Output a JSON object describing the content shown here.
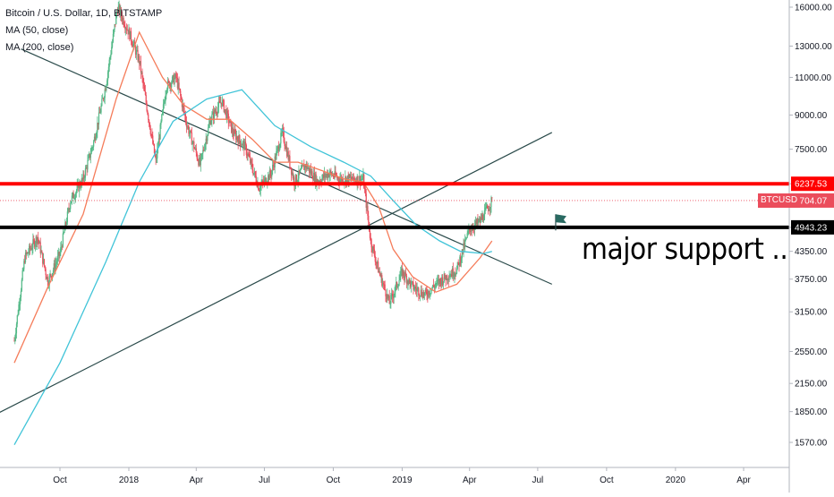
{
  "chart": {
    "title": "Bitcoin / U.S. Dollar, 1D, BITSTAMP",
    "indicators": [
      "MA (50, close)",
      "MA (200, close)"
    ],
    "annotation": "major support ..",
    "symbol_tag": "BTCUSD",
    "colors": {
      "candle_up": "#53b987",
      "candle_down": "#eb4d5c",
      "ma50": "#f57c5a",
      "ma200": "#40c4d8",
      "resistance": "#ff0000",
      "support": "#000000",
      "trendline": "#2a4a4a",
      "price_line": "#eb4d5c"
    }
  },
  "chart_data": {
    "type": "line",
    "xaxis_ticks": [
      "Oct",
      "2018",
      "Apr",
      "Jul",
      "Oct",
      "2019",
      "Apr",
      "Jul",
      "Oct",
      "2020",
      "Apr"
    ],
    "yaxis_ticks": [
      16000.0,
      13000.0,
      11000.0,
      9000.0,
      7500.0,
      6237.53,
      5704.07,
      4943.23,
      4350.0,
      3750.0,
      3150.0,
      2550.0,
      2150.0,
      1850.0,
      1570.0
    ],
    "ylim": [
      1400,
      16800
    ],
    "yscale": "log",
    "horizontal_levels": [
      {
        "price": 6237.53,
        "label": "6237.53",
        "style": "resistance"
      },
      {
        "price": 4943.23,
        "label": "4943.23",
        "style": "support"
      }
    ],
    "last_price": {
      "price": 5704.07,
      "label": "5704.07"
    },
    "series": [
      {
        "name": "BTCUSD",
        "x": [
          "2017-08-01",
          "2017-08-15",
          "2017-09-01",
          "2017-09-15",
          "2017-10-01",
          "2017-10-15",
          "2017-11-01",
          "2017-11-15",
          "2017-12-01",
          "2017-12-17",
          "2018-01-01",
          "2018-01-15",
          "2018-02-06",
          "2018-02-20",
          "2018-03-05",
          "2018-03-20",
          "2018-04-06",
          "2018-04-20",
          "2018-05-05",
          "2018-05-20",
          "2018-06-05",
          "2018-06-24",
          "2018-07-10",
          "2018-07-25",
          "2018-08-10",
          "2018-08-25",
          "2018-09-10",
          "2018-09-25",
          "2018-10-10",
          "2018-10-25",
          "2018-11-10",
          "2018-11-20",
          "2018-12-01",
          "2018-12-15",
          "2019-01-01",
          "2019-01-15",
          "2019-02-01",
          "2019-02-15",
          "2019-03-01",
          "2019-03-15",
          "2019-04-01",
          "2019-04-15",
          "2019-05-01"
        ],
        "values": [
          2700,
          4200,
          4700,
          3700,
          4300,
          5700,
          6400,
          7800,
          10500,
          16000,
          14000,
          12000,
          7000,
          10500,
          11000,
          8500,
          6900,
          8800,
          9700,
          8200,
          7600,
          6100,
          6600,
          8200,
          6300,
          6900,
          6300,
          6600,
          6400,
          6400,
          6400,
          4600,
          3900,
          3300,
          3900,
          3600,
          3450,
          3650,
          3800,
          3950,
          4900,
          5100,
          5700
        ]
      },
      {
        "name": "MA (50, close)",
        "x": [
          "2017-08-01",
          "2017-09-15",
          "2017-11-01",
          "2017-12-15",
          "2018-01-15",
          "2018-02-15",
          "2018-03-15",
          "2018-04-15",
          "2018-05-15",
          "2018-06-15",
          "2018-07-15",
          "2018-08-15",
          "2018-09-15",
          "2018-10-15",
          "2018-11-10",
          "2018-12-01",
          "2018-12-20",
          "2019-01-15",
          "2019-02-15",
          "2019-03-15",
          "2019-04-15",
          "2019-05-01"
        ],
        "values": [
          2400,
          3600,
          5300,
          9800,
          14000,
          11000,
          9500,
          8800,
          8800,
          7900,
          7000,
          7000,
          6700,
          6400,
          6300,
          5500,
          4400,
          3800,
          3500,
          3650,
          4200,
          4600
        ]
      },
      {
        "name": "MA (200, close)",
        "x": [
          "2017-08-01",
          "2017-10-01",
          "2017-12-01",
          "2018-01-15",
          "2018-03-01",
          "2018-04-15",
          "2018-06-01",
          "2018-07-15",
          "2018-09-01",
          "2018-10-15",
          "2018-11-20",
          "2018-12-20",
          "2019-01-20",
          "2019-02-20",
          "2019-03-20",
          "2019-04-20",
          "2019-05-01"
        ],
        "values": [
          1550,
          2400,
          4100,
          6300,
          8700,
          9800,
          10300,
          8500,
          7600,
          7000,
          6500,
          5700,
          5000,
          4600,
          4350,
          4300,
          4350
        ]
      }
    ],
    "trendlines": [
      {
        "name": "descending",
        "from": [
          "2017-08-10",
          12800
        ],
        "to": [
          "2019-07-20",
          3650
        ]
      },
      {
        "name": "ascending",
        "from": [
          "2017-07-01",
          1800
        ],
        "to": [
          "2019-07-20",
          8200
        ]
      }
    ],
    "grid": false,
    "legend": "top-left"
  }
}
